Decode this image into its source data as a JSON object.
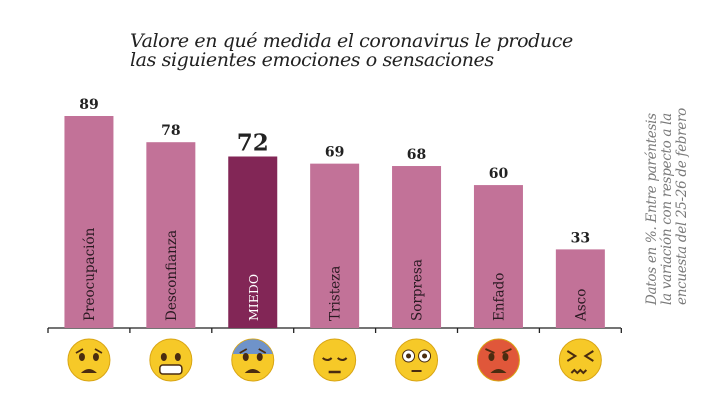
{
  "chart_data": {
    "type": "bar",
    "title_lines": [
      "Valore en qué medida el coronavirus le produce",
      "las siguientes emociones o sensaciones"
    ],
    "note_lines": [
      "Datos en %. Entre paréntesis",
      "la variación con respecto a la",
      "encuesta del 25-26 de febrero"
    ],
    "categories": [
      "Preocupación",
      "Desconfianza",
      "MIEDO",
      "Tristeza",
      "Sorpresa",
      "Enfado",
      "Asco"
    ],
    "values": [
      89,
      78,
      72,
      69,
      68,
      60,
      33
    ],
    "highlight": "MIEDO",
    "icons": [
      "worried-face-icon",
      "grimacing-face-icon",
      "fearful-face-icon",
      "pensive-face-icon",
      "flushed-face-icon",
      "angry-face-icon",
      "confounded-face-icon"
    ],
    "ylim": [
      0,
      100
    ],
    "grid": false,
    "colors": {
      "bar": "#c27298",
      "highlight": "#822656",
      "axis": "#222222"
    }
  }
}
